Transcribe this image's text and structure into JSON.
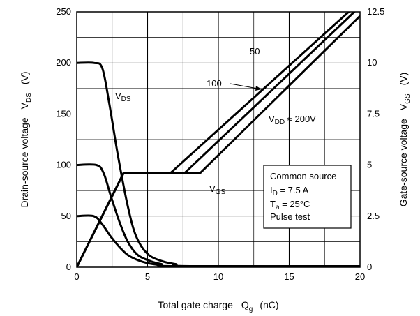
{
  "chart_data": {
    "type": "line",
    "xlabel": {
      "main": "Total gate charge",
      "symbol": "Q",
      "sub": "g",
      "unit": "(nC)"
    },
    "ylabel_left": {
      "main": "Drain-source voltage",
      "symbol": "V",
      "sub": "DS",
      "unit": "(V)"
    },
    "ylabel_right": {
      "main": "Gate-source voltage",
      "symbol": "V",
      "sub": "GS",
      "unit": "(V)"
    },
    "xlim": [
      0,
      20
    ],
    "ylim_left": [
      0,
      250
    ],
    "ylim_right": [
      0,
      12.5
    ],
    "grid": true,
    "x_ticks": [
      "0",
      "5",
      "10",
      "15",
      "20"
    ],
    "y_left_ticks": [
      "0",
      "50",
      "100",
      "150",
      "200",
      "250"
    ],
    "y_right_ticks": [
      "0",
      "2.5",
      "5",
      "7.5",
      "10",
      "12.5"
    ],
    "series": [
      {
        "axis": "left",
        "x": [
          0,
          1.2,
          1.8,
          2.3,
          2.9,
          3.6,
          4.2,
          5.0,
          6.0,
          7.0,
          8.0,
          20
        ],
        "y": [
          200,
          200,
          195,
          160,
          110,
          60,
          30,
          13,
          6,
          3,
          1,
          1
        ]
      },
      {
        "axis": "left",
        "x": [
          0,
          1.4,
          1.9,
          2.4,
          3.0,
          3.6,
          4.3,
          5.2,
          6.0,
          7.0,
          20
        ],
        "y": [
          100,
          100,
          92,
          70,
          45,
          25,
          12,
          6,
          3,
          1,
          1
        ]
      },
      {
        "axis": "left",
        "x": [
          0,
          1.2,
          1.8,
          2.4,
          3.0,
          3.6,
          4.3,
          5.0,
          6.0,
          7.0,
          20
        ],
        "y": [
          50,
          50,
          42,
          30,
          20,
          12,
          7,
          4,
          2,
          1,
          1
        ]
      },
      {
        "axis": "right",
        "x": [
          0,
          3.3,
          6.6,
          19.2
        ],
        "y": [
          0,
          4.6,
          4.6,
          12.5
        ]
      },
      {
        "axis": "right",
        "x": [
          0,
          3.3,
          7.6,
          19.6
        ],
        "y": [
          0,
          4.6,
          4.6,
          12.5
        ]
      },
      {
        "axis": "right",
        "x": [
          0,
          3.3,
          8.7,
          20.0
        ],
        "y": [
          0,
          4.6,
          4.6,
          12.3
        ]
      }
    ],
    "annotations": [
      {
        "id": "vds",
        "main": "V",
        "sub": "DS",
        "rest": ""
      },
      {
        "id": "vgs",
        "main": "V",
        "sub": "GS",
        "rest": ""
      },
      {
        "id": "l50",
        "main": "50",
        "sub": "",
        "rest": ""
      },
      {
        "id": "l100",
        "main": "100",
        "sub": "",
        "rest": ""
      },
      {
        "id": "lvdd",
        "main": "V",
        "sub": "DD",
        "rest": " ≈ 200V"
      }
    ],
    "legend_box": {
      "line1": "Common source",
      "line2_main": "I",
      "line2_sub": "D",
      "line2_rest": " = 7.5 A",
      "line3_main": "T",
      "line3_sub": "a",
      "line3_rest": " = 25°C",
      "line4": "Pulse test"
    }
  }
}
